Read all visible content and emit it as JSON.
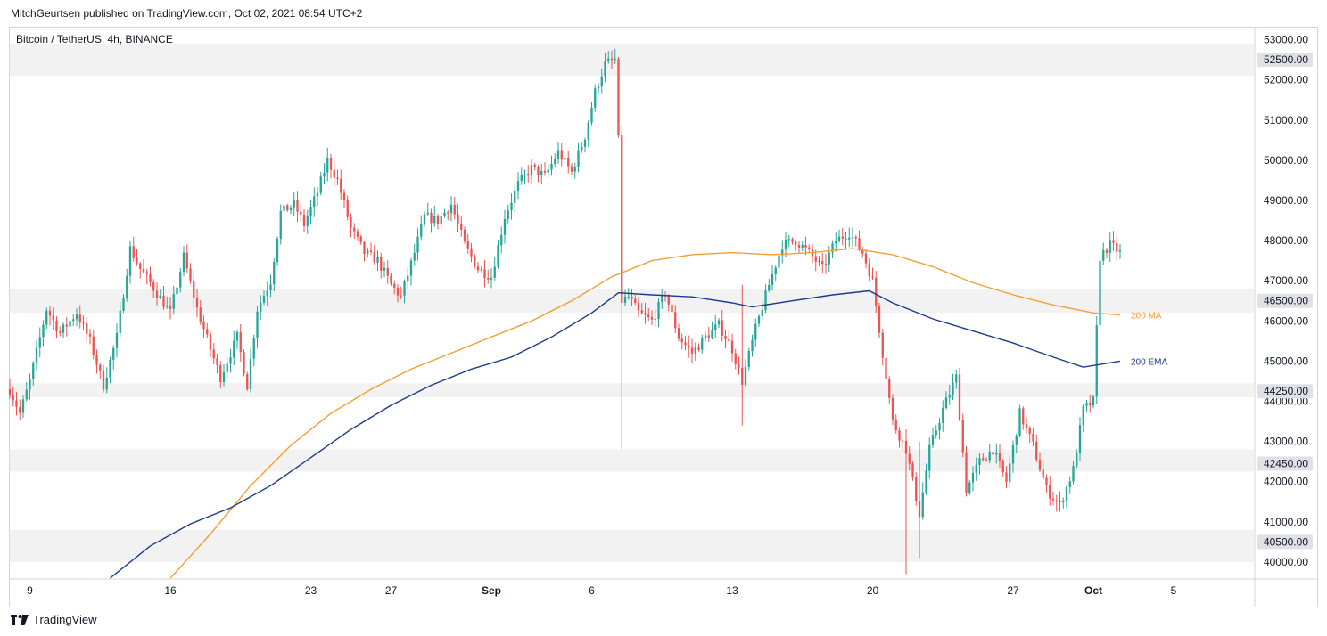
{
  "header": {
    "text": "MitchGeurtsen published on TradingView.com, Oct 02, 2021 08:54 UTC+2"
  },
  "footer": {
    "brand": "TradingView"
  },
  "colors": {
    "up": "#26a69a",
    "down": "#ef5350",
    "ma": "#f2a033",
    "ema": "#1e3a8a",
    "zone": "#f2f2f2"
  },
  "chart_data": {
    "type": "candlestick",
    "title": "Bitcoin / TetherUS, 4h, BINANCE",
    "ylim": [
      39600,
      53300
    ],
    "y_ticks": [
      40000,
      41000,
      42000,
      43000,
      44000,
      45000,
      46000,
      47000,
      48000,
      49000,
      50000,
      51000,
      52000,
      53000
    ],
    "y_tick_labels": [
      "40000.00",
      "41000.00",
      "42000.00",
      "43000.00",
      "44000.00",
      "45000.00",
      "46000.00",
      "47000.00",
      "48000.00",
      "49000.00",
      "50000.00",
      "51000.00",
      "52000.00",
      "53000.00"
    ],
    "x_tick_labels": [
      {
        "label": "9",
        "date": "2021-08-09"
      },
      {
        "label": "16",
        "date": "2021-08-16"
      },
      {
        "label": "23",
        "date": "2021-08-23"
      },
      {
        "label": "27",
        "date": "2021-08-27"
      },
      {
        "label": "Sep",
        "date": "2021-09-01"
      },
      {
        "label": "6",
        "date": "2021-09-06"
      },
      {
        "label": "13",
        "date": "2021-09-13"
      },
      {
        "label": "20",
        "date": "2021-09-20"
      },
      {
        "label": "27",
        "date": "2021-09-27"
      },
      {
        "label": "Oct",
        "date": "2021-10-01"
      },
      {
        "label": "5",
        "date": "2021-10-05"
      }
    ],
    "x_range": [
      "2021-08-08",
      "2021-10-09"
    ],
    "zones": [
      {
        "level": "52500.00",
        "low": 52100,
        "high": 52900
      },
      {
        "level": "46500.00",
        "low": 46200,
        "high": 46800
      },
      {
        "level": "44250.00",
        "low": 44100,
        "high": 44450
      },
      {
        "level": "42450.00",
        "low": 42250,
        "high": 42800
      },
      {
        "level": "40500.00",
        "low": 40000,
        "high": 40800
      }
    ],
    "ma_label": "200 MA",
    "ema_label": "200 EMA",
    "ma_points": [
      [
        "2021-08-16 00:00",
        39600
      ],
      [
        "2021-08-18 00:00",
        40700
      ],
      [
        "2021-08-20 00:00",
        41900
      ],
      [
        "2021-08-22 00:00",
        42900
      ],
      [
        "2021-08-24 00:00",
        43700
      ],
      [
        "2021-08-26 00:00",
        44300
      ],
      [
        "2021-08-28 00:00",
        44800
      ],
      [
        "2021-08-30 00:00",
        45200
      ],
      [
        "2021-09-01 00:00",
        45600
      ],
      [
        "2021-09-03 00:00",
        46000
      ],
      [
        "2021-09-05 00:00",
        46500
      ],
      [
        "2021-09-07 00:00",
        47100
      ],
      [
        "2021-09-09 00:00",
        47500
      ],
      [
        "2021-09-11 00:00",
        47650
      ],
      [
        "2021-09-13 00:00",
        47700
      ],
      [
        "2021-09-15 00:00",
        47650
      ],
      [
        "2021-09-17 00:00",
        47700
      ],
      [
        "2021-09-19 00:00",
        47800
      ],
      [
        "2021-09-21 00:00",
        47650
      ],
      [
        "2021-09-23 00:00",
        47350
      ],
      [
        "2021-09-25 00:00",
        46950
      ],
      [
        "2021-09-27 00:00",
        46650
      ],
      [
        "2021-09-29 00:00",
        46400
      ],
      [
        "2021-10-01 00:00",
        46200
      ],
      [
        "2021-10-02 08:00",
        46150
      ]
    ],
    "ema_points": [
      [
        "2021-08-13 00:00",
        39600
      ],
      [
        "2021-08-15 00:00",
        40400
      ],
      [
        "2021-08-17 00:00",
        40950
      ],
      [
        "2021-08-19 00:00",
        41350
      ],
      [
        "2021-08-21 00:00",
        41900
      ],
      [
        "2021-08-23 00:00",
        42600
      ],
      [
        "2021-08-25 00:00",
        43300
      ],
      [
        "2021-08-27 00:00",
        43900
      ],
      [
        "2021-08-29 00:00",
        44400
      ],
      [
        "2021-08-31 00:00",
        44800
      ],
      [
        "2021-09-02 00:00",
        45100
      ],
      [
        "2021-09-04 00:00",
        45600
      ],
      [
        "2021-09-06 00:00",
        46200
      ],
      [
        "2021-09-07 08:00",
        46700
      ],
      [
        "2021-09-09 00:00",
        46650
      ],
      [
        "2021-09-11 00:00",
        46600
      ],
      [
        "2021-09-13 00:00",
        46450
      ],
      [
        "2021-09-14 00:00",
        46350
      ],
      [
        "2021-09-16 00:00",
        46500
      ],
      [
        "2021-09-18 00:00",
        46650
      ],
      [
        "2021-09-19 20:00",
        46750
      ],
      [
        "2021-09-21 00:00",
        46450
      ],
      [
        "2021-09-23 00:00",
        46050
      ],
      [
        "2021-09-25 00:00",
        45750
      ],
      [
        "2021-09-27 00:00",
        45450
      ],
      [
        "2021-09-29 00:00",
        45100
      ],
      [
        "2021-09-30 12:00",
        44850
      ],
      [
        "2021-10-02 08:00",
        45000
      ]
    ],
    "price_path": [
      [
        "2021-08-08 00:00",
        44300
      ],
      [
        "2021-08-08 12:00",
        43700
      ],
      [
        "2021-08-09 00:00",
        44500
      ],
      [
        "2021-08-09 20:00",
        46300
      ],
      [
        "2021-08-10 12:00",
        45700
      ],
      [
        "2021-08-11 08:00",
        46200
      ],
      [
        "2021-08-12 00:00",
        45500
      ],
      [
        "2021-08-12 16:00",
        44400
      ],
      [
        "2021-08-13 08:00",
        45600
      ],
      [
        "2021-08-14 00:00",
        47800
      ],
      [
        "2021-08-14 12:00",
        47300
      ],
      [
        "2021-08-15 08:00",
        46700
      ],
      [
        "2021-08-16 00:00",
        46200
      ],
      [
        "2021-08-16 16:00",
        47600
      ],
      [
        "2021-08-17 08:00",
        46300
      ],
      [
        "2021-08-18 00:00",
        45300
      ],
      [
        "2021-08-18 12:00",
        44600
      ],
      [
        "2021-08-19 08:00",
        45600
      ],
      [
        "2021-08-19 20:00",
        44400
      ],
      [
        "2021-08-20 08:00",
        46300
      ],
      [
        "2021-08-21 00:00",
        47000
      ],
      [
        "2021-08-21 12:00",
        48700
      ],
      [
        "2021-08-22 04:00",
        48900
      ],
      [
        "2021-08-22 16:00",
        48400
      ],
      [
        "2021-08-23 08:00",
        49200
      ],
      [
        "2021-08-23 20:00",
        50000
      ],
      [
        "2021-08-24 08:00",
        49500
      ],
      [
        "2021-08-25 00:00",
        48300
      ],
      [
        "2021-08-25 16:00",
        47700
      ],
      [
        "2021-08-26 08:00",
        47500
      ],
      [
        "2021-08-27 00:00",
        46900
      ],
      [
        "2021-08-27 12:00",
        46600
      ],
      [
        "2021-08-28 04:00",
        47700
      ],
      [
        "2021-08-28 16:00",
        48600
      ],
      [
        "2021-08-29 08:00",
        48500
      ],
      [
        "2021-08-30 00:00",
        48900
      ],
      [
        "2021-08-30 16:00",
        47900
      ],
      [
        "2021-08-31 08:00",
        47300
      ],
      [
        "2021-09-01 00:00",
        47100
      ],
      [
        "2021-09-01 16:00",
        48600
      ],
      [
        "2021-09-02 08:00",
        49400
      ],
      [
        "2021-09-03 00:00",
        49800
      ],
      [
        "2021-09-03 16:00",
        49600
      ],
      [
        "2021-09-04 08:00",
        50200
      ],
      [
        "2021-09-05 00:00",
        49700
      ],
      [
        "2021-09-05 16:00",
        50600
      ],
      [
        "2021-09-06 04:00",
        51700
      ],
      [
        "2021-09-06 16:00",
        52400
      ],
      [
        "2021-09-07 04:00",
        52500
      ],
      [
        "2021-09-07 08:00",
        50500
      ],
      [
        "2021-09-07 12:00",
        46500
      ],
      [
        "2021-09-07 20:00",
        46600
      ],
      [
        "2021-09-08 08:00",
        46200
      ],
      [
        "2021-09-09 00:00",
        46000
      ],
      [
        "2021-09-09 16:00",
        46700
      ],
      [
        "2021-09-10 08:00",
        45600
      ],
      [
        "2021-09-11 00:00",
        45200
      ],
      [
        "2021-09-11 16:00",
        45600
      ],
      [
        "2021-09-12 08:00",
        45900
      ],
      [
        "2021-09-13 00:00",
        45300
      ],
      [
        "2021-09-13 12:00",
        44500
      ],
      [
        "2021-09-14 04:00",
        45800
      ],
      [
        "2021-09-14 20:00",
        46900
      ],
      [
        "2021-09-15 12:00",
        47900
      ],
      [
        "2021-09-16 04:00",
        48000
      ],
      [
        "2021-09-16 20:00",
        47700
      ],
      [
        "2021-09-17 12:00",
        47300
      ],
      [
        "2021-09-18 04:00",
        48000
      ],
      [
        "2021-09-18 20:00",
        48200
      ],
      [
        "2021-09-19 12:00",
        47700
      ],
      [
        "2021-09-20 00:00",
        47000
      ],
      [
        "2021-09-20 12:00",
        45200
      ],
      [
        "2021-09-21 00:00",
        43500
      ],
      [
        "2021-09-21 16:00",
        42800
      ],
      [
        "2021-09-22 08:00",
        41200
      ],
      [
        "2021-09-22 20:00",
        42800
      ],
      [
        "2021-09-23 12:00",
        43800
      ],
      [
        "2021-09-24 04:00",
        44600
      ],
      [
        "2021-09-24 16:00",
        41800
      ],
      [
        "2021-09-25 08:00",
        42500
      ],
      [
        "2021-09-26 00:00",
        42800
      ],
      [
        "2021-09-26 16:00",
        42000
      ],
      [
        "2021-09-27 08:00",
        43700
      ],
      [
        "2021-09-28 00:00",
        42900
      ],
      [
        "2021-09-28 16:00",
        41800
      ],
      [
        "2021-09-29 08:00",
        41400
      ],
      [
        "2021-09-30 00:00",
        42300
      ],
      [
        "2021-09-30 12:00",
        43800
      ],
      [
        "2021-10-01 00:00",
        44000
      ],
      [
        "2021-10-01 08:00",
        47600
      ],
      [
        "2021-10-01 20:00",
        47900
      ],
      [
        "2021-10-02 08:00",
        47700
      ]
    ]
  }
}
